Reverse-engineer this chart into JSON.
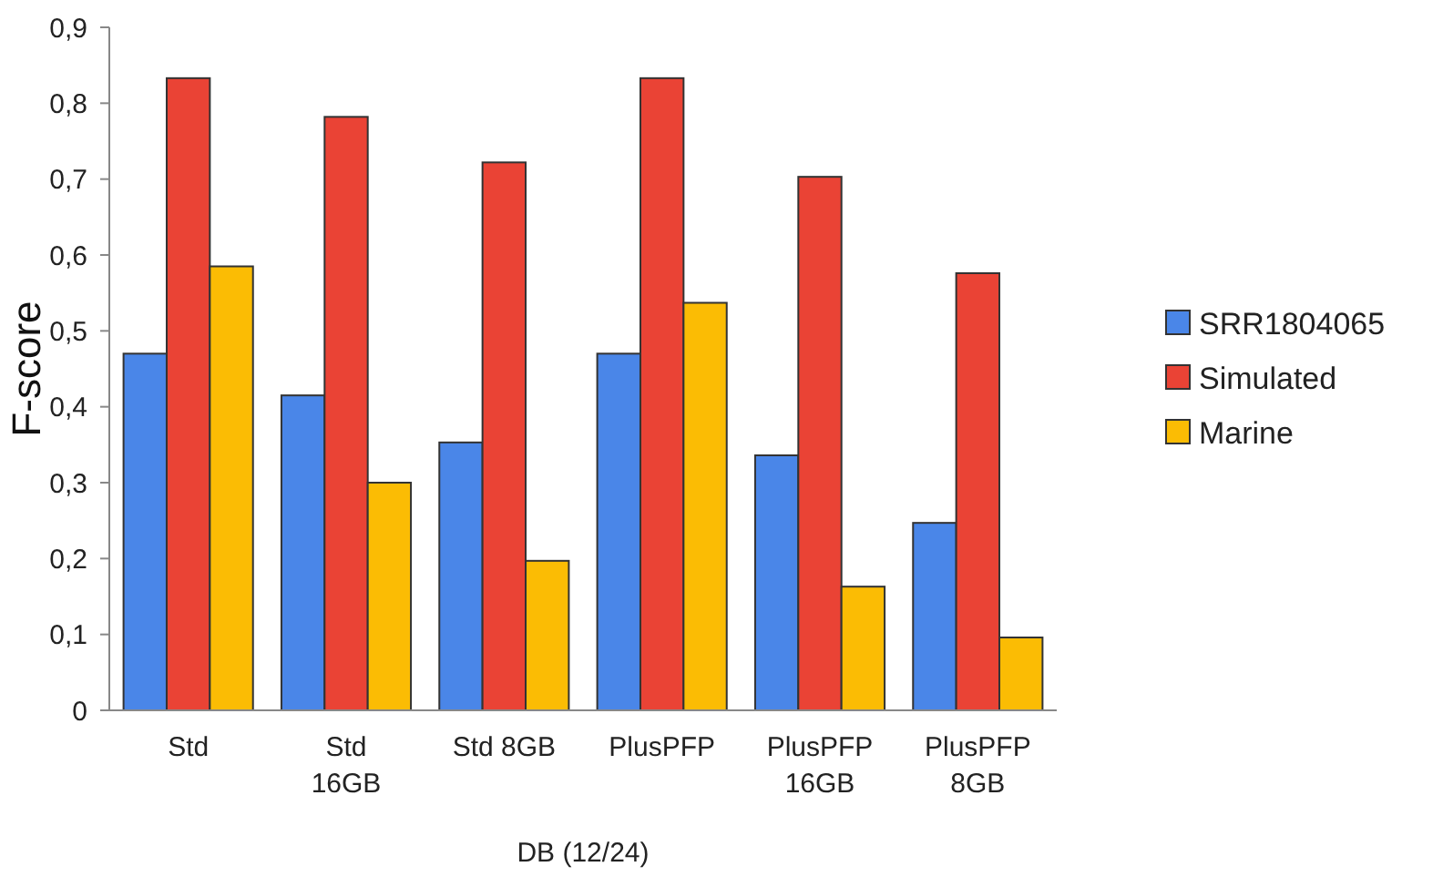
{
  "chart_data": {
    "type": "bar",
    "xlabel": "DB (12/24)",
    "ylabel": "F-score",
    "categories": [
      "Std",
      "Std\n16GB",
      "Std 8GB",
      "PlusPFP",
      "PlusPFP\n16GB",
      "PlusPFP\n8GB"
    ],
    "series": [
      {
        "name": "SRR1804065",
        "color": "#4a86e8",
        "values": [
          0.47,
          0.415,
          0.353,
          0.47,
          0.336,
          0.247
        ]
      },
      {
        "name": "Simulated",
        "color": "#ea4335",
        "values": [
          0.833,
          0.782,
          0.722,
          0.833,
          0.703,
          0.576
        ]
      },
      {
        "name": "Marine",
        "color": "#fbbc04",
        "values": [
          0.585,
          0.3,
          0.197,
          0.537,
          0.163,
          0.096
        ]
      }
    ],
    "ylim": [
      0,
      0.9
    ],
    "yticks": [
      0,
      {
        "value": 0.1,
        "label": "0,1"
      },
      {
        "value": 0.2,
        "label": "0,2"
      },
      {
        "value": 0.3,
        "label": "0,3"
      },
      {
        "value": 0.4,
        "label": "0,4"
      },
      {
        "value": 0.5,
        "label": "0,5"
      },
      {
        "value": 0.6,
        "label": "0,6"
      },
      {
        "value": 0.7,
        "label": "0,7"
      },
      {
        "value": 0.8,
        "label": "0,8"
      },
      {
        "value": 0.9,
        "label": "0,9"
      }
    ],
    "grid": false,
    "legend": "right"
  }
}
